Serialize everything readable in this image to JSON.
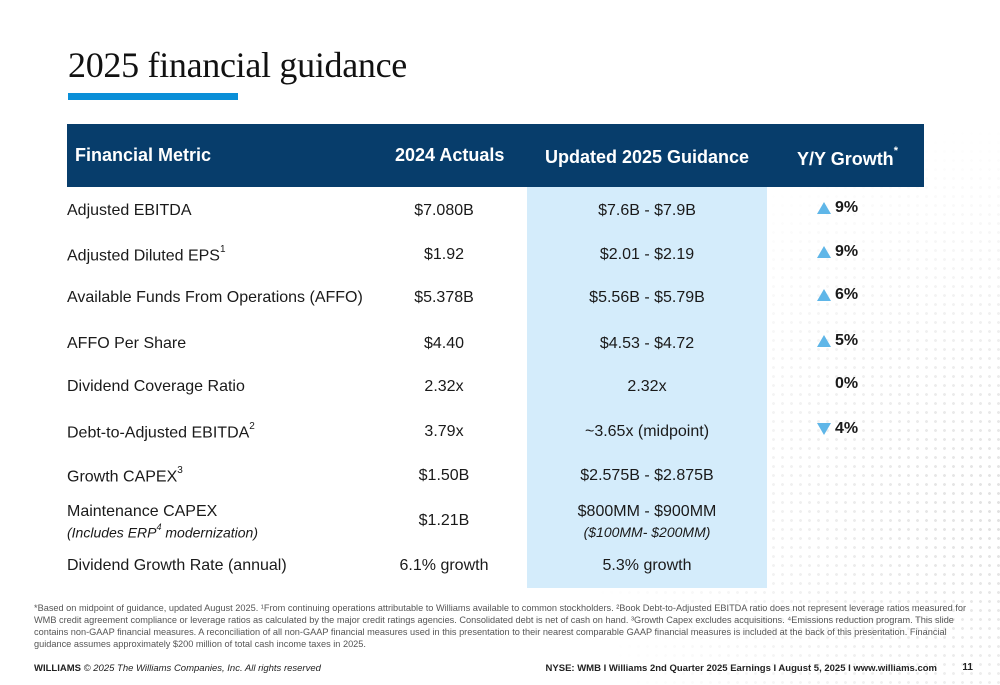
{
  "slide": {
    "title": "2025 financial guidance",
    "accent_color": "#0a8fd8",
    "header_color": "#073d6b",
    "highlight_color": "#d4ecfb"
  },
  "table": {
    "headers": {
      "metric": "Financial Metric",
      "actuals": "2024 Actuals",
      "guidance": "Updated 2025 Guidance",
      "growth": "Y/Y Growth",
      "growth_marker": "*"
    },
    "rows": [
      {
        "metric": "Adjusted EBITDA",
        "sup": "",
        "actual": "$7.080B",
        "guidance": "$7.6B - $7.9B",
        "growth": "9%",
        "arrow": "up"
      },
      {
        "metric": "Adjusted Diluted EPS",
        "sup": "1",
        "actual": "$1.92",
        "guidance": "$2.01 - $2.19",
        "growth": "9%",
        "arrow": "up"
      },
      {
        "metric": "Available Funds From Operations (AFFO)",
        "sup": "",
        "actual": "$5.378B",
        "guidance": "$5.56B - $5.79B",
        "growth": "6%",
        "arrow": "up"
      },
      {
        "metric": "AFFO Per Share",
        "sup": "",
        "actual": "$4.40",
        "guidance": "$4.53 - $4.72",
        "growth": "5%",
        "arrow": "up"
      },
      {
        "metric": "Dividend Coverage Ratio",
        "sup": "",
        "actual": "2.32x",
        "guidance": "2.32x",
        "growth": "0%",
        "arrow": "none"
      },
      {
        "metric": "Debt-to-Adjusted EBITDA",
        "sup": "2",
        "actual": "3.79x",
        "guidance": "~3.65x (midpoint)",
        "growth": "4%",
        "arrow": "down"
      },
      {
        "metric": "Growth CAPEX",
        "sup": "3",
        "actual": "$1.50B",
        "guidance": "$2.575B - $2.875B",
        "growth": "",
        "arrow": ""
      },
      {
        "metric": "Maintenance CAPEX",
        "sup": "",
        "metric_note_pre": "(Includes ERP",
        "metric_note_sup": "4",
        "metric_note_post": " modernization)",
        "actual": "$1.21B",
        "guidance": "$800MM - $900MM",
        "guidance_note": "($100MM- $200MM)",
        "growth": "",
        "arrow": ""
      },
      {
        "metric": "Dividend Growth Rate (annual)",
        "sup": "",
        "actual": "6.1% growth",
        "guidance": "5.3% growth",
        "growth": "",
        "arrow": ""
      }
    ]
  },
  "footnote": "*Based on midpoint of guidance, updated August 2025. ¹From continuing operations attributable to Williams available to common stockholders. ²Book Debt-to-Adjusted EBITDA ratio does not represent leverage ratios measured for WMB credit agreement compliance or leverage ratios as calculated by the major credit ratings agencies. Consolidated debt is net of cash on hand. ³Growth Capex excludes acquisitions. ⁴Emissions reduction program. This slide contains non-GAAP financial measures. A reconciliation of all non-GAAP financial measures used in this presentation to their nearest comparable GAAP financial measures is included at the back of this presentation. Financial guidance assumes approximately $200 million of total cash income taxes in 2025.",
  "footer": {
    "company": "WILLIAMS",
    "copyright": "© 2025 The Williams Companies, Inc. All rights reserved",
    "info": "NYSE: WMB  I  Williams 2nd Quarter 2025 Earnings I  August 5, 2025  I  www.williams.com",
    "page": "11"
  }
}
